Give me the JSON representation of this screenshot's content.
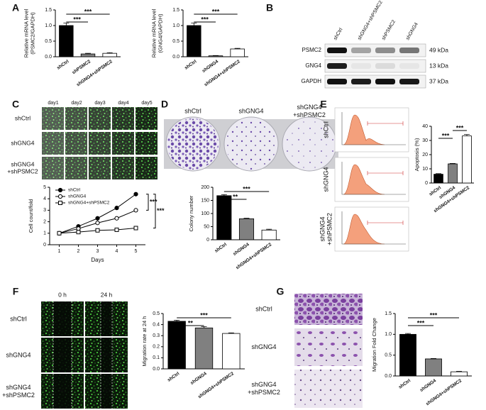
{
  "panels": [
    "A",
    "B",
    "C",
    "D",
    "E",
    "F",
    "G"
  ],
  "blot": {
    "lanes": [
      "shCtrl",
      "shGNG4+shPSMC2",
      "shPSMC2",
      "shGNG4"
    ],
    "proteins": [
      "PSMC2",
      "GNG4",
      "GAPDH"
    ],
    "sizes": [
      "49 kDa",
      "13 kDa",
      "37 kDa"
    ]
  },
  "c_images": {
    "columns": [
      "day1",
      "day2",
      "day3",
      "day4",
      "day5"
    ],
    "rows": [
      "shCtrl",
      "shGNG4",
      [
        "shGNG4",
        "+shPSMC2"
      ]
    ]
  },
  "d_images": {
    "columns": [
      "shCtrl",
      "shGNG4",
      [
        "shGNG4",
        "+shPSMC2"
      ]
    ]
  },
  "e_images": {
    "rows": [
      "shCtrl",
      "shGNG4",
      [
        "shGNG4",
        "+shPSMC2"
      ]
    ]
  },
  "f_images": {
    "columns": [
      "0 h",
      "24 h"
    ],
    "rows": [
      "shCtrl",
      "shGNG4",
      [
        "shGNG4",
        "+shPSMC2"
      ]
    ],
    "widths": [
      [
        32.4,
        18.9
      ],
      [
        31.7,
        20.7
      ],
      [
        34.2,
        23.3
      ]
    ]
  },
  "g_images": {
    "rows": [
      "shCtrl",
      "shGNG4",
      [
        "shGNG4",
        "+shPSMC2"
      ]
    ]
  },
  "chart_data": [
    {
      "type": "bar",
      "y_label": [
        "Relative mRNA level",
        "(PSMC2/GAPDH)"
      ],
      "categories": [
        "shCtrl",
        "shPSMC2",
        "shGNG4+shPSMC2"
      ],
      "values": [
        1.0,
        0.09,
        0.11
      ],
      "errors": [
        0.08,
        0.02,
        0.02
      ],
      "colors": [
        "#000000",
        "#808080",
        "#ffffff"
      ],
      "ylim": [
        0,
        1.5
      ],
      "yticks": [
        {
          "value": 0,
          "label": "0.0"
        },
        0.5,
        {
          "value": 1,
          "label": "1.0"
        },
        1.5
      ],
      "significance": [
        {
          "label": "***",
          "from": "shCtrl",
          "to": "shPSMC2"
        },
        {
          "label": "***",
          "from": "shCtrl",
          "to": "shGNG4+shPSMC2"
        }
      ]
    },
    {
      "type": "bar",
      "y_label": [
        "Relative mRNA level",
        "(GNG4/GAPDH)"
      ],
      "categories": [
        "shCtrl",
        "shGNG4",
        "shGNG4+shPSMC2"
      ],
      "values": [
        1.0,
        0.03,
        0.25
      ],
      "errors": [
        0.08,
        0.01,
        0.02
      ],
      "colors": [
        "#000000",
        "#808080",
        "#ffffff"
      ],
      "ylim": [
        0,
        1.5
      ],
      "yticks": [
        {
          "value": 0,
          "label": "0.0"
        },
        0.5,
        {
          "value": 1,
          "label": "1.0"
        },
        1.5
      ],
      "significance": [
        {
          "label": "***",
          "from": "shCtrl",
          "to": "shGNG4"
        },
        {
          "label": "***",
          "from": "shCtrl",
          "to": "shGNG4+shPSMC2"
        }
      ]
    },
    {
      "type": "line",
      "x_label": "Days",
      "y_label": [
        "Cell count/fold"
      ],
      "x": [
        1,
        2,
        3,
        4,
        5
      ],
      "xlim": [
        0.5,
        5.5
      ],
      "xticks": [
        1,
        2,
        3,
        4,
        5
      ],
      "ylim": [
        0,
        5
      ],
      "yticks": [
        0,
        1,
        2,
        3,
        4,
        5
      ],
      "legend": "upper left",
      "series": [
        {
          "name": "shCtrl",
          "color": "#000000",
          "marker": "circle",
          "filled": true,
          "values": [
            1,
            1.6,
            2.3,
            3.2,
            4.4
          ]
        },
        {
          "name": "shGNG4",
          "color": "#000000",
          "marker": "circle",
          "filled": false,
          "values": [
            1,
            1.4,
            1.9,
            2.3,
            3.0
          ]
        },
        {
          "name": "shGNG4+shPSMC2",
          "color": "#000000",
          "marker": "square",
          "filled": false,
          "values": [
            1,
            1.1,
            1.25,
            1.3,
            1.45
          ]
        }
      ],
      "significance": [
        {
          "label": "***",
          "from": "shCtrl",
          "to": "shGNG4"
        },
        {
          "label": "***",
          "from": "shCtrl",
          "to": "shGNG4+shPSMC2"
        }
      ]
    },
    {
      "type": "bar",
      "y_label": [
        "Colony number"
      ],
      "categories": [
        "shCtrl",
        "shGNG4",
        "shGNG4+shPSMC2"
      ],
      "values": [
        168,
        80,
        37
      ],
      "errors": [
        4,
        2,
        3
      ],
      "colors": [
        "#000000",
        "#808080",
        "#ffffff"
      ],
      "ylim": [
        0,
        200
      ],
      "yticks": [
        0,
        50,
        100,
        150,
        200
      ],
      "significance": [
        {
          "label": "**",
          "from": "shCtrl",
          "to": "shGNG4"
        },
        {
          "label": "***",
          "from": "shCtrl",
          "to": "shGNG4+shPSMC2"
        }
      ]
    },
    {
      "type": "bar",
      "y_label": [
        "Apoptosis (%)"
      ],
      "categories": [
        "shCtrl",
        "shGNG4",
        "shGNG4+shPSMC2"
      ],
      "values": [
        6.2,
        13.5,
        33.2
      ],
      "errors": [
        0.4,
        0.3,
        1.0
      ],
      "colors": [
        "#000000",
        "#808080",
        "#ffffff"
      ],
      "ylim": [
        0,
        40
      ],
      "yticks": [
        0,
        10,
        20,
        30,
        40
      ],
      "significance": [
        {
          "label": "***",
          "from": "shCtrl",
          "to": "shGNG4"
        },
        {
          "label": "***",
          "from": "shGNG4",
          "to": "shGNG4+shPSMC2"
        }
      ]
    },
    {
      "type": "bar",
      "y_label": [
        "Migration rate at 24 h"
      ],
      "categories": [
        "shCtrl",
        "shGNG4",
        "shGNG4+shPSMC2"
      ],
      "values": [
        0.43,
        0.37,
        0.32
      ],
      "errors": [
        0.01,
        0.012,
        0.005
      ],
      "colors": [
        "#000000",
        "#808080",
        "#ffffff"
      ],
      "ylim": [
        0,
        0.5
      ],
      "yticks": [
        {
          "value": 0,
          "label": "0.0"
        },
        0.1,
        0.2,
        0.3,
        0.4,
        0.5
      ],
      "significance": [
        {
          "label": "**",
          "from": "shCtrl",
          "to": "shGNG4"
        },
        {
          "label": "***",
          "from": "shCtrl",
          "to": "shGNG4+shPSMC2"
        }
      ]
    },
    {
      "type": "bar",
      "y_label": [
        "Migration Fold Change"
      ],
      "categories": [
        "shCtrl",
        "shGNG4",
        "shGNG4+shPSMC2"
      ],
      "values": [
        1.0,
        0.41,
        0.1
      ],
      "errors": [
        0.02,
        0.01,
        0.01
      ],
      "colors": [
        "#000000",
        "#808080",
        "#ffffff"
      ],
      "ylim": [
        0,
        1.5
      ],
      "yticks": [
        {
          "value": 0,
          "label": "0.0"
        },
        0.5,
        {
          "value": 1,
          "label": "1.0"
        },
        1.5
      ],
      "significance": [
        {
          "label": "***",
          "from": "shCtrl",
          "to": "shGNG4"
        },
        {
          "label": "***",
          "from": "shCtrl",
          "to": "shGNG4+shPSMC2"
        }
      ]
    }
  ]
}
